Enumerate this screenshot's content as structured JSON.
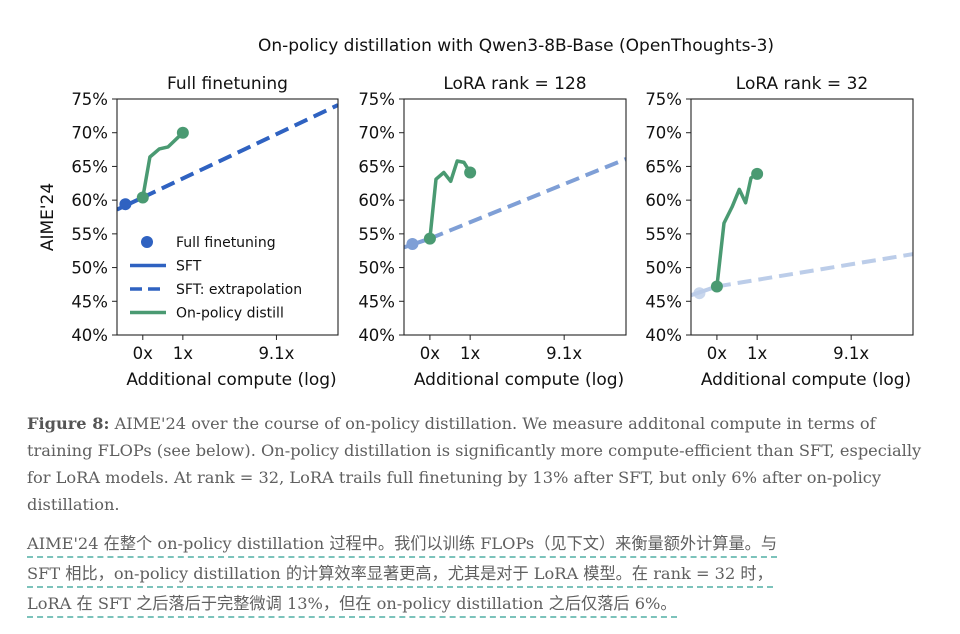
{
  "chart_data": {
    "type": "line",
    "title": "On-policy distillation with Qwen3-8B-Base (OpenThoughts-3)",
    "xscale": "log10(1+x)",
    "xlim": [
      -0.36,
      28.3
    ],
    "ylim": [
      40,
      75
    ],
    "yticks": [
      40,
      45,
      50,
      55,
      60,
      65,
      70,
      75
    ],
    "ytick_labels": [
      "40%",
      "45%",
      "50%",
      "55%",
      "60%",
      "65%",
      "70%",
      "75%"
    ],
    "xticks": [
      0,
      1,
      9.1
    ],
    "xtick_labels": [
      "0x",
      "1x",
      "9.1x"
    ],
    "xlabel": "Additional compute (log)",
    "ylabel": "AIME'24",
    "grid": false,
    "legend": {
      "placement": "lower-left",
      "panel": 0,
      "entries": [
        {
          "label": "Full finetuning",
          "kind": "marker"
        },
        {
          "label": "SFT",
          "kind": "solid"
        },
        {
          "label": "SFT: extrapolation",
          "kind": "dashed"
        },
        {
          "label": "On-policy distill",
          "kind": "green"
        }
      ]
    },
    "colors": {
      "full_finetuning": "#2f62c1",
      "lora128": "#7f9fd6",
      "lora32": "#bccde9",
      "on_policy": "#4a9a72"
    },
    "panels": [
      {
        "title": "Full finetuning",
        "sft_color_key": "full_finetuning",
        "sft_point": {
          "x": -0.26,
          "y": 59.4
        },
        "sft_line": [
          {
            "x": -0.36,
            "y": 58.6
          },
          {
            "x": 0,
            "y": 60.4
          }
        ],
        "sft_extrapolation": [
          {
            "x": 0,
            "y": 60.4
          },
          {
            "x": 28.3,
            "y": 74.1
          }
        ],
        "on_policy": [
          {
            "x": 0,
            "y": 60.4
          },
          {
            "x": 0.13,
            "y": 66.4
          },
          {
            "x": 0.33,
            "y": 67.6
          },
          {
            "x": 0.55,
            "y": 67.9
          },
          {
            "x": 1.0,
            "y": 70.0
          }
        ]
      },
      {
        "title": "LoRA rank = 128",
        "sft_color_key": "lora128",
        "sft_point": {
          "x": -0.26,
          "y": 53.5
        },
        "sft_line": [
          {
            "x": -0.36,
            "y": 53.0
          },
          {
            "x": 0,
            "y": 54.3
          }
        ],
        "sft_extrapolation": [
          {
            "x": 0,
            "y": 54.3
          },
          {
            "x": 28.3,
            "y": 66.1
          }
        ],
        "on_policy": [
          {
            "x": 0,
            "y": 54.3
          },
          {
            "x": 0.11,
            "y": 63.1
          },
          {
            "x": 0.27,
            "y": 64.1
          },
          {
            "x": 0.43,
            "y": 62.8
          },
          {
            "x": 0.6,
            "y": 65.8
          },
          {
            "x": 0.8,
            "y": 65.6
          },
          {
            "x": 1.0,
            "y": 64.1
          }
        ]
      },
      {
        "title": "LoRA rank = 32",
        "sft_color_key": "lora32",
        "sft_point": {
          "x": -0.26,
          "y": 46.2
        },
        "sft_line": [
          {
            "x": -0.36,
            "y": 45.9
          },
          {
            "x": 0,
            "y": 47.2
          }
        ],
        "sft_extrapolation": [
          {
            "x": 0,
            "y": 47.2
          },
          {
            "x": 28.3,
            "y": 52.0
          }
        ],
        "on_policy": [
          {
            "x": 0,
            "y": 47.2
          },
          {
            "x": 0.13,
            "y": 56.6
          },
          {
            "x": 0.3,
            "y": 59.0
          },
          {
            "x": 0.47,
            "y": 61.6
          },
          {
            "x": 0.64,
            "y": 59.6
          },
          {
            "x": 0.8,
            "y": 63.3
          },
          {
            "x": 1.0,
            "y": 63.9
          }
        ]
      }
    ]
  },
  "caption": {
    "label": "Figure 8:",
    "text": " AIME'24 over the course of on-policy distillation. We measure additonal compute in terms of training FLOPs (see below). On-policy distillation is significantly more compute-efficient than SFT, especially for LoRA models. At rank = 32, LoRA trails full finetuning by 13% after SFT, but only 6% after on-policy distillation."
  },
  "translation": {
    "lines": [
      "AIME'24 在整个 on-policy distillation 过程中。我们以训练 FLOPs（见下文）来衡量额外计算量。与",
      "SFT 相比，on-policy distillation 的计算效率显著更高，尤其是对于 LoRA 模型。在 rank = 32 时，",
      "LoRA 在 SFT 之后落后于完整微调 13%，但在 on-policy distillation 之后仅落后 6%。"
    ]
  }
}
